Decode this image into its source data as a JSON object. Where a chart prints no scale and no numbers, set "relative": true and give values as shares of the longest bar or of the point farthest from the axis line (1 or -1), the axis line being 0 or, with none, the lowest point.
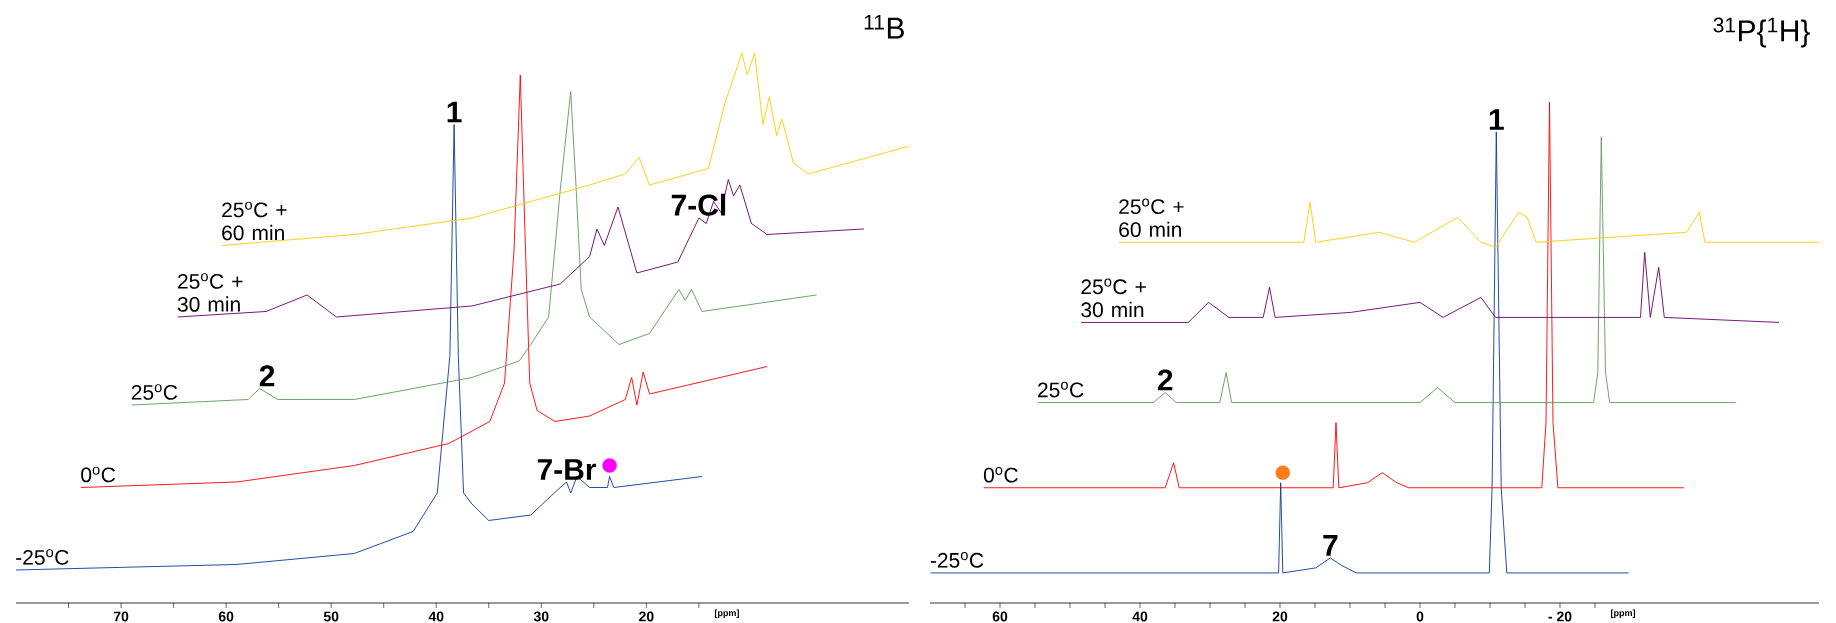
{
  "chart_data": [
    {
      "type": "line",
      "relative": true,
      "title": "$^{11}$B",
      "xlabel": "[ppm]",
      "xlim": [
        80,
        -5
      ],
      "xticks": [
        {
          "value": 75,
          "label": null
        },
        70,
        {
          "value": 65,
          "label": null
        },
        60,
        {
          "value": 55,
          "label": null
        },
        50,
        {
          "value": 45,
          "label": null
        },
        40,
        {
          "value": 35,
          "label": null
        },
        30,
        {
          "value": 25,
          "label": null
        },
        20,
        {
          "value": 15,
          "label": null
        }
      ],
      "series": [
        {
          "name": "-25$^{o}$C",
          "color": "#0a3a9c",
          "x": [
            80,
            59,
            47.8,
            42.2,
            39.9,
            38.7,
            38.3,
            37.9,
            37.4,
            36.6,
            35,
            31,
            28.2,
            27.6,
            27.2,
            26.6,
            25.4,
            23.7,
            23.5,
            23.1,
            14.7
          ],
          "values": [
            0.06,
            0.07,
            0.09,
            0.13,
            0.2,
            0.45,
            0.87,
            0.45,
            0.2,
            0.18,
            0.15,
            0.16,
            0.21,
            0.22,
            0.2,
            0.23,
            0.21,
            0.21,
            0.23,
            0.21,
            0.23
          ]
        },
        {
          "name": "0$^{o}$C",
          "color": "#ff0000",
          "x": [
            73.8,
            59,
            47.8,
            38.8,
            34.9,
            33.5,
            32.6,
            32,
            31.5,
            31.1,
            30.4,
            28.7,
            25.4,
            22,
            21.4,
            20.9,
            20.3,
            19.7,
            8.5
          ],
          "values": [
            0.21,
            0.22,
            0.25,
            0.29,
            0.33,
            0.4,
            0.64,
            0.96,
            0.64,
            0.4,
            0.35,
            0.33,
            0.34,
            0.37,
            0.41,
            0.36,
            0.42,
            0.38,
            0.43
          ]
        },
        {
          "name": "25$^{o}$C",
          "color": "#5f9a5a",
          "x": [
            69,
            57.9,
            56.8,
            55.1,
            47.8,
            36.6,
            32.1,
            31,
            29.3,
            28.2,
            27.7,
            27.2,
            26.7,
            26.2,
            25.4,
            22.6,
            19.7,
            16.9,
            16.3,
            15.7,
            14.7,
            3.8
          ],
          "values": [
            0.36,
            0.37,
            0.39,
            0.37,
            0.37,
            0.41,
            0.44,
            0.47,
            0.52,
            0.75,
            0.84,
            0.93,
            0.76,
            0.57,
            0.52,
            0.47,
            0.49,
            0.57,
            0.55,
            0.57,
            0.53,
            0.56
          ]
        },
        {
          "name": "25$^{o}$C + 30 min",
          "color": "#660066",
          "x": [
            64.6,
            56.2,
            52.3,
            49.5,
            36.6,
            28.2,
            25.4,
            24.7,
            24,
            22.7,
            20.9,
            17,
            15,
            14.3,
            13.6,
            12.9,
            12.2,
            11.7,
            11.1,
            10,
            8.5,
            -0.7
          ],
          "values": [
            0.52,
            0.53,
            0.56,
            0.52,
            0.54,
            0.58,
            0.63,
            0.68,
            0.65,
            0.72,
            0.6,
            0.62,
            0.7,
            0.69,
            0.73,
            0.71,
            0.77,
            0.74,
            0.76,
            0.69,
            0.67,
            0.68
          ]
        },
        {
          "name": "25$^{o}$C + 60 min",
          "color": "#ffcc00",
          "x": [
            60.4,
            47.8,
            36.6,
            25.4,
            22,
            20.7,
            19.7,
            14.1,
            12.5,
            10.9,
            10.4,
            9.7,
            8.9,
            8.3,
            7.6,
            7.1,
            6,
            4.6,
            -4.9
          ],
          "values": [
            0.65,
            0.67,
            0.7,
            0.76,
            0.78,
            0.81,
            0.76,
            0.79,
            0.91,
            1.0,
            0.96,
            1.0,
            0.87,
            0.92,
            0.85,
            0.88,
            0.8,
            0.78,
            0.83
          ]
        },
        {
          "type": "scatter",
          "marker": "circle",
          "color": "#ff00ff",
          "x": [
            23.5
          ],
          "values": [
            0.25
          ]
        }
      ],
      "annotations": [
        {
          "text": "1",
          "x": 38.3,
          "y": 0.87
        },
        {
          "text": "2",
          "x": 56.1,
          "y": 0.39
        },
        {
          "text": "7-Br",
          "x": 27.6,
          "y": 0.22
        },
        {
          "text": "7-Cl",
          "x": 15,
          "y": 0.7
        }
      ]
    },
    {
      "type": "line",
      "relative": true,
      "title": "$^{31}$P{$^{1}$H}",
      "xlabel": "[ppm]",
      "xlim": [
        70,
        -57
      ],
      "xticks": [
        {
          "value": 65,
          "label": null
        },
        60,
        {
          "value": 55,
          "label": null
        },
        {
          "value": 50,
          "label": null
        },
        {
          "value": 45,
          "label": null
        },
        40,
        {
          "value": 35,
          "label": null
        },
        {
          "value": 30,
          "label": null
        },
        {
          "value": 25,
          "label": null
        },
        20,
        {
          "value": 15,
          "label": null
        },
        {
          "value": 10,
          "label": null
        },
        {
          "value": 5,
          "label": null
        },
        0,
        {
          "value": -5,
          "label": null
        },
        {
          "value": -10,
          "label": null
        },
        {
          "value": -15,
          "label": null
        },
        {
          "value": -20,
          "label": "- 20"
        },
        {
          "value": -25,
          "label": null
        }
      ],
      "series": [
        {
          "name": "-25$^{o}$C",
          "color": "#0a3a9c",
          "x": [
            69.9,
            20.2,
            19.9,
            19.6,
            14.9,
            12.8,
            11.2,
            9.1,
            -9.9,
            -10.3,
            -10.9,
            -11.6,
            -12.4,
            -29.8
          ],
          "values": [
            0.06,
            0.06,
            0.24,
            0.06,
            0.07,
            0.09,
            0.075,
            0.06,
            0.06,
            0.23,
            0.94,
            0.23,
            0.06,
            0.06
          ]
        },
        {
          "name": "0$^{o}$C",
          "color": "#ff0000",
          "x": [
            62.3,
            36.4,
            35.2,
            34.4,
            12.4,
            12,
            11.6,
            7.5,
            5.4,
            3.3,
            1.6,
            -17.4,
            -18,
            -18.5,
            -19,
            -19.7,
            -37.7
          ],
          "values": [
            0.23,
            0.23,
            0.28,
            0.23,
            0.23,
            0.36,
            0.23,
            0.24,
            0.26,
            0.24,
            0.23,
            0.23,
            0.36,
            1.0,
            0.36,
            0.23,
            0.23
          ]
        },
        {
          "name": "25$^{o}$C",
          "color": "#5f9a5a",
          "x": [
            54.6,
            38.1,
            36.4,
            34.8,
            28.6,
            27.7,
            26.9,
            0,
            -2.5,
            -5,
            -24.8,
            -25.4,
            -25.9,
            -26.5,
            -27.1,
            -45.1
          ],
          "values": [
            0.4,
            0.4,
            0.42,
            0.4,
            0.4,
            0.46,
            0.4,
            0.4,
            0.43,
            0.4,
            0.4,
            0.46,
            0.93,
            0.46,
            0.4,
            0.4
          ]
        },
        {
          "name": "25$^{o}$C + 30 min",
          "color": "#660066",
          "x": [
            48.4,
            33.1,
            30.2,
            27.3,
            22.4,
            21.5,
            20.7,
            9.9,
            0,
            -3.3,
            -8.7,
            -10.8,
            -31.5,
            -32.1,
            -32.9,
            -34.1,
            -34.9,
            -51.3
          ],
          "values": [
            0.56,
            0.56,
            0.6,
            0.57,
            0.57,
            0.63,
            0.57,
            0.58,
            0.6,
            0.57,
            0.61,
            0.57,
            0.57,
            0.7,
            0.57,
            0.67,
            0.57,
            0.56
          ]
        },
        {
          "name": "25$^{o}$C + 60 min",
          "color": "#ffcc00",
          "x": [
            43,
            16.6,
            15.7,
            14.9,
            5.8,
            0.8,
            -5.4,
            -8.7,
            -10.8,
            -14.1,
            -15.3,
            -16.6,
            -38.1,
            -39.9,
            -40.7,
            -57
          ],
          "values": [
            0.72,
            0.72,
            0.8,
            0.72,
            0.74,
            0.72,
            0.77,
            0.72,
            0.71,
            0.78,
            0.77,
            0.72,
            0.74,
            0.78,
            0.72,
            0.72
          ]
        },
        {
          "type": "scatter",
          "marker": "circle",
          "color": "#ff7a1a",
          "x": [
            19.6
          ],
          "values": [
            0.26
          ]
        }
      ],
      "annotations": [
        {
          "text": "1",
          "x": -10.9,
          "y": 0.94
        },
        {
          "text": "2",
          "x": 36.4,
          "y": 0.42
        },
        {
          "text": "7",
          "x": 12.8,
          "y": 0.09
        }
      ]
    }
  ]
}
